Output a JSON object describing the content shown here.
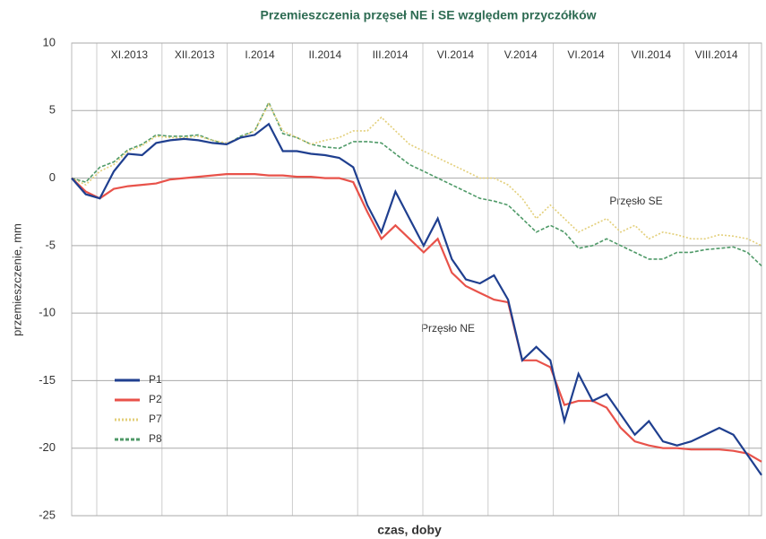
{
  "chart_data": {
    "type": "line",
    "title": "Przemieszczenia przęseł NE i SE względem przyczółków",
    "ylabel": "przemieszczenie, mm",
    "xlabel": "czas, doby",
    "months": [
      "XI.2013",
      "XII.2013",
      "I.2014",
      "II.2014",
      "III.2014",
      "VI.2014",
      "V.2014",
      "VI.2014",
      "VII.2014",
      "VIII.2014"
    ],
    "annotations": [
      "Przęsło SE",
      "Przęsło NE"
    ],
    "ylim": [
      -25,
      10
    ],
    "yticks": [
      -25,
      -20,
      -15,
      -10,
      -5,
      0,
      5,
      10
    ],
    "grid": true,
    "legend": "lower left",
    "series": [
      {
        "name": "P1",
        "color": "#1f3f8f",
        "style": "solid",
        "values": [
          0,
          -1.2,
          -1.5,
          0.5,
          1.8,
          1.7,
          2.6,
          2.8,
          2.9,
          2.8,
          2.6,
          2.5,
          3,
          3.2,
          4,
          2,
          2,
          1.8,
          1.7,
          1.5,
          0.8,
          -2,
          -4,
          -1,
          -3,
          -5,
          -3,
          -6,
          -7.5,
          -7.8,
          -7.2,
          -9,
          -13.5,
          -12.5,
          -13.5,
          -18,
          -14.5,
          -16.5,
          -16,
          -17.5,
          -19,
          -18,
          -19.5,
          -19.8,
          -19.5,
          -19,
          -18.5,
          -19,
          -20.5,
          -22
        ]
      },
      {
        "name": "P2",
        "color": "#e8524a",
        "style": "solid",
        "values": [
          0,
          -1,
          -1.5,
          -0.8,
          -0.6,
          -0.5,
          -0.4,
          -0.1,
          0,
          0.1,
          0.2,
          0.3,
          0.3,
          0.3,
          0.2,
          0.2,
          0.1,
          0.1,
          0,
          0,
          -0.3,
          -2.5,
          -4.5,
          -3.5,
          -4.5,
          -5.5,
          -4.5,
          -7,
          -8,
          -8.5,
          -9,
          -9.2,
          -13.5,
          -13.5,
          -14,
          -16.8,
          -16.5,
          -16.5,
          -17,
          -18.5,
          -19.5,
          -19.8,
          -20,
          -20,
          -20.1,
          -20.1,
          -20.1,
          -20.2,
          -20.4,
          -21
        ]
      },
      {
        "name": "P7",
        "color": "#e3cf7a",
        "style": "dotted",
        "values": [
          0,
          -0.5,
          0.5,
          1,
          2,
          2.4,
          3.1,
          3,
          3,
          3.1,
          2.8,
          2.6,
          3,
          3.5,
          5.5,
          3.5,
          3,
          2.5,
          2.8,
          3,
          3.5,
          3.5,
          4.5,
          3.5,
          2.5,
          2,
          1.5,
          1,
          0.5,
          0,
          0,
          -0.5,
          -1.5,
          -3,
          -2,
          -3,
          -4,
          -3.5,
          -3,
          -4,
          -3.5,
          -4.5,
          -4,
          -4.2,
          -4.5,
          -4.5,
          -4.2,
          -4.3,
          -4.5,
          -5
        ]
      },
      {
        "name": "P8",
        "color": "#4f9a68",
        "style": "dashed",
        "values": [
          0,
          -0.3,
          0.8,
          1.2,
          2.1,
          2.5,
          3.2,
          3.1,
          3.1,
          3.2,
          2.8,
          2.5,
          3.1,
          3.5,
          5.6,
          3.3,
          3,
          2.5,
          2.3,
          2.2,
          2.7,
          2.7,
          2.6,
          1.8,
          1,
          0.5,
          0,
          -0.5,
          -1,
          -1.5,
          -1.7,
          -2,
          -3,
          -4,
          -3.5,
          -4,
          -5.2,
          -5,
          -4.5,
          -5,
          -5.5,
          -6,
          -6,
          -5.5,
          -5.5,
          -5.3,
          -5.2,
          -5.1,
          -5.5,
          -6.5
        ]
      }
    ]
  }
}
